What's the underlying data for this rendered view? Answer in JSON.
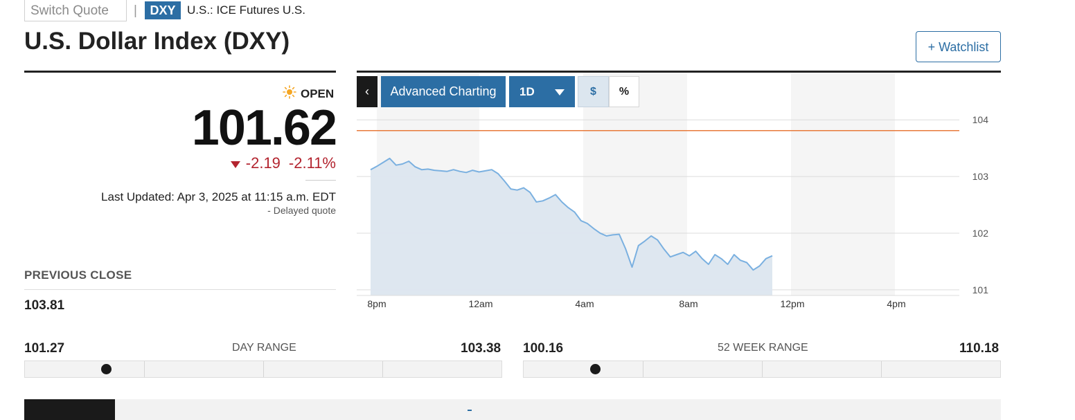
{
  "header": {
    "switch_quote_placeholder": "Switch Quote",
    "separator": "|",
    "ticker": "DXY",
    "exchange": "U.S.: ICE Futures U.S.",
    "title": "U.S. Dollar Index (DXY)",
    "watchlist_label": "+ Watchlist"
  },
  "quote": {
    "status_icon": "sun-icon",
    "status": "OPEN",
    "price": "101.62",
    "change": "-2.19",
    "change_percent": "-2.11%",
    "direction_icon": "down-triangle-icon",
    "last_updated": "Last Updated: Apr 3, 2025 at 11:15 a.m. EDT",
    "delayed": "-  Delayed quote",
    "previous_close_label": "PREVIOUS CLOSE",
    "previous_close": "103.81"
  },
  "chart_toolbar": {
    "back_label": "‹",
    "advanced_label": "Advanced Charting",
    "period_label": "1D",
    "dollar_label": "$",
    "percent_label": "%"
  },
  "chart_data": {
    "type": "area",
    "title": "",
    "ylabel": "",
    "xlabel": "",
    "x_ticks": [
      "8pm",
      "12am",
      "4am",
      "8am",
      "12pm",
      "4pm"
    ],
    "y_ticks": [
      101,
      102,
      103,
      104
    ],
    "ylim": [
      100.9,
      104.1
    ],
    "previous_close_line": 103.81,
    "series": [
      {
        "values": [
          103.12,
          103.18,
          103.25,
          103.32,
          103.2,
          103.22,
          103.27,
          103.17,
          103.12,
          103.13,
          103.11,
          103.1,
          103.09,
          103.12,
          103.09,
          103.07,
          103.11,
          103.08,
          103.1,
          103.12,
          103.05,
          102.92,
          102.78,
          102.76,
          102.8,
          102.72,
          102.55,
          102.57,
          102.62,
          102.68,
          102.55,
          102.45,
          102.37,
          102.22,
          102.17,
          102.08,
          102.0,
          101.95,
          101.97,
          101.98,
          101.72,
          101.4,
          101.78,
          101.86,
          101.95,
          101.88,
          101.72,
          101.58,
          101.62,
          101.66,
          101.6,
          101.68,
          101.55,
          101.45,
          101.62,
          101.55,
          101.45,
          101.62,
          101.52,
          101.48,
          101.35,
          101.42,
          101.55,
          101.6
        ]
      }
    ]
  },
  "ranges": {
    "day": {
      "low": "101.27",
      "label": "DAY RANGE",
      "high": "103.38",
      "position": 0.17
    },
    "week52": {
      "low": "100.16",
      "label": "52 WEEK RANGE",
      "high": "110.18",
      "position": 0.15
    }
  },
  "colors": {
    "accent": "#2c6ea4",
    "negative": "#b3242f",
    "line": "#7ab0e0",
    "area": "#dce6ef",
    "prev_close": "#e8793a"
  }
}
